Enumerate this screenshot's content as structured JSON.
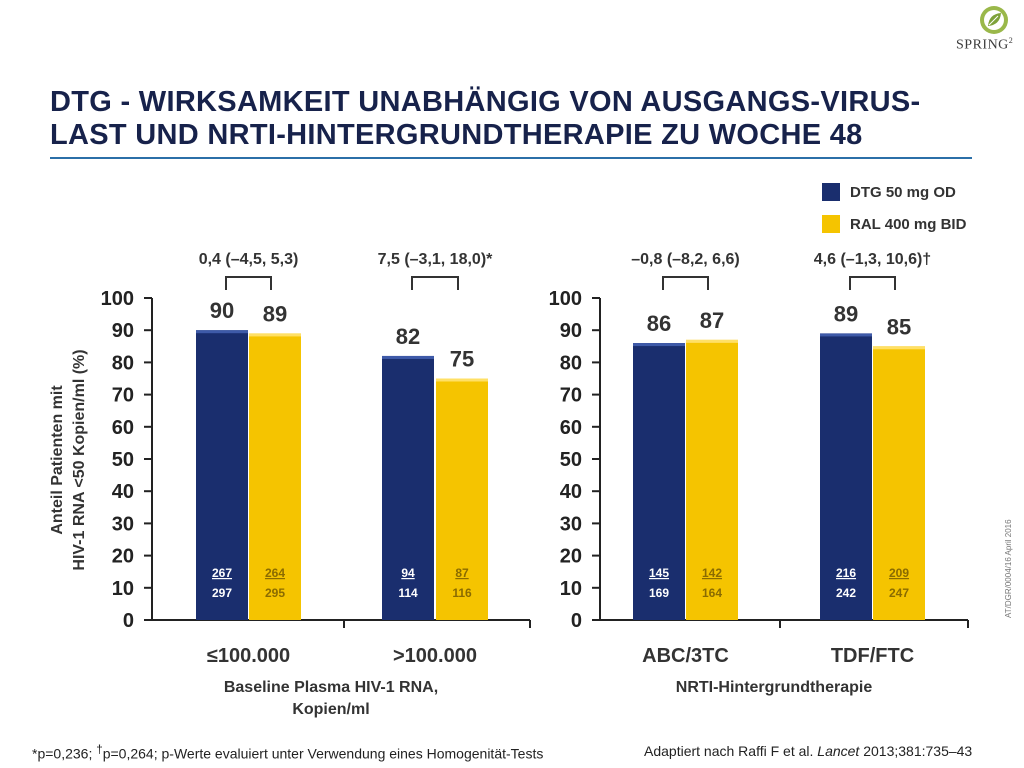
{
  "logo": {
    "text": "SPRING",
    "sup": "2",
    "icon": "leaf-icon"
  },
  "title": {
    "line1": "DTG - WIRKSAMKEIT UNABHÄNGIG VON AUSGANGS-VIRUS-",
    "line2": "LAST UND NRTI-HINTERGRUNDTHERAPIE ZU WOCHE 48"
  },
  "colors": {
    "dtg": "#1a2e6e",
    "ral": "#f5c400",
    "title": "#17224b",
    "rule": "#2b6fa8"
  },
  "legend": {
    "dtg": "DTG 50 mg OD",
    "ral": "RAL 400 mg BID"
  },
  "side_code": "AT/DGR/0004/16  April 2016",
  "footnote": {
    "a": "*p=0,236; ",
    "dagger": "†",
    "b": "p=0,264; p-Werte evaluiert unter Verwendung eines Homogenität-Tests"
  },
  "source": {
    "a": "Adaptiert nach Raffi F et al. ",
    "journal": "Lancet",
    "b": " 2013;381:735–43"
  },
  "chart_data": [
    {
      "type": "bar",
      "ylabel_line1": "Anteil Patienten mit",
      "ylabel_line2": "HIV-1 RNA <50 Kopien/ml (%)",
      "ylim": [
        0,
        100
      ],
      "yticks": [
        "0",
        "10",
        "20",
        "30",
        "40",
        "50",
        "60",
        "70",
        "80",
        "90",
        "100"
      ],
      "xlabel_line1": "Baseline Plasma HIV-1 RNA,",
      "xlabel_line2": "Kopien/ml",
      "categories": [
        "≤100.000",
        ">100.000"
      ],
      "series": [
        {
          "name": "DTG 50 mg OD",
          "values": [
            90,
            82
          ],
          "n": [
            "267",
            "94"
          ],
          "N": [
            "297",
            "114"
          ]
        },
        {
          "name": "RAL 400 mg BID",
          "values": [
            89,
            75
          ],
          "n": [
            "264",
            "87"
          ],
          "N": [
            "295",
            "116"
          ]
        }
      ],
      "differences": [
        "0,4 (–4,5, 5,3)",
        "7,5 (–3,1, 18,0)*"
      ]
    },
    {
      "type": "bar",
      "ylim": [
        0,
        100
      ],
      "yticks": [
        "0",
        "10",
        "20",
        "30",
        "40",
        "50",
        "60",
        "70",
        "80",
        "90",
        "100"
      ],
      "xlabel_line1": "NRTI-Hintergrundtherapie",
      "categories": [
        "ABC/3TC",
        "TDF/FTC"
      ],
      "series": [
        {
          "name": "DTG 50 mg OD",
          "values": [
            86,
            89
          ],
          "n": [
            "145",
            "216"
          ],
          "N": [
            "169",
            "242"
          ]
        },
        {
          "name": "RAL 400 mg BID",
          "values": [
            87,
            85
          ],
          "n": [
            "142",
            "209"
          ],
          "N": [
            "164",
            "247"
          ]
        }
      ],
      "differences": [
        "–0,8 (–8,2, 6,6)",
        "4,6 (–1,3, 10,6)†"
      ]
    }
  ]
}
